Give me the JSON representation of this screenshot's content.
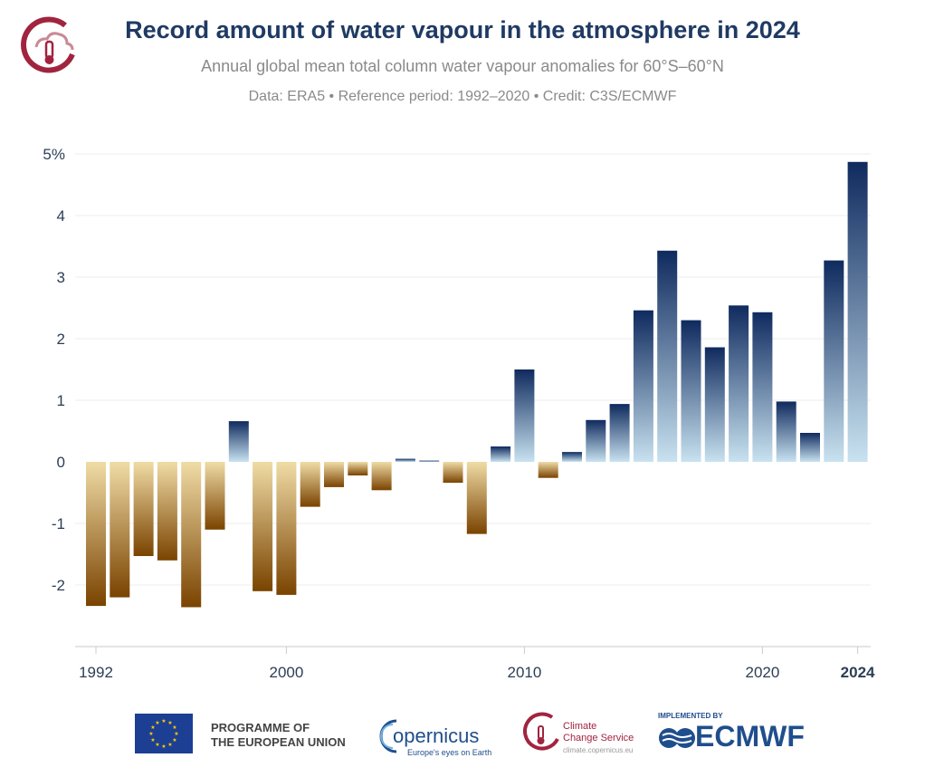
{
  "header": {
    "title": "Record amount of water vapour in the atmosphere in 2024",
    "subtitle": "Annual global mean total column water vapour anomalies for 60°S–60°N",
    "source_line": "Data: ERA5 • Reference period: 1992–2020 • Credit: C3S/ECMWF"
  },
  "chart_data": {
    "type": "bar",
    "title": "Record amount of water vapour in the atmosphere in 2024",
    "subtitle": "Annual global mean total column water vapour anomalies for 60°S–60°N",
    "xlabel": "",
    "ylabel": "",
    "y_unit": "%",
    "ylim": [
      -3,
      5
    ],
    "y_ticks": [
      -2,
      -1,
      0,
      1,
      2,
      3,
      4,
      5
    ],
    "y_tick_labels": [
      "-2",
      "-1",
      "0",
      "1",
      "2",
      "3",
      "4",
      "5%"
    ],
    "x_tick_labels": [
      "1992",
      "2000",
      "2010",
      "2020",
      "2024"
    ],
    "x_tick_bold": [
      "2024"
    ],
    "grid": true,
    "legend": "none",
    "categories": [
      1992,
      1993,
      1994,
      1995,
      1996,
      1997,
      1998,
      1999,
      2000,
      2001,
      2002,
      2003,
      2004,
      2005,
      2006,
      2007,
      2008,
      2009,
      2010,
      2011,
      2012,
      2013,
      2014,
      2015,
      2016,
      2017,
      2018,
      2019,
      2020,
      2021,
      2022,
      2023,
      2024
    ],
    "values": [
      -2.34,
      -2.2,
      -1.53,
      -1.6,
      -2.36,
      -1.1,
      0.66,
      -2.1,
      -2.16,
      -0.73,
      -0.41,
      -0.22,
      -0.46,
      0.05,
      0.02,
      -0.34,
      -1.17,
      0.25,
      1.5,
      -0.26,
      0.16,
      0.68,
      0.94,
      2.46,
      3.43,
      2.3,
      1.86,
      2.54,
      2.43,
      0.98,
      0.47,
      3.27,
      4.87
    ]
  },
  "colors": {
    "title": "#1f3a63",
    "subtitle": "#8a8a8a",
    "negative_light": "#f0dca6",
    "negative_dark": "#7a4300",
    "positive_light": "#c8e2f0",
    "positive_dark": "#0f2a5e"
  },
  "logos": {
    "eu_text": [
      "PROGRAMME OF",
      "THE EUROPEAN UNION"
    ],
    "copernicus_word": "opernicus",
    "copernicus_tagline": "Europe's eyes on Earth",
    "ccs_text": [
      "Climate",
      "Change Service"
    ],
    "ccs_url": "climate.copernicus.eu",
    "implemented_by": "IMPLEMENTED BY",
    "ecmwf": "ECMWF"
  }
}
